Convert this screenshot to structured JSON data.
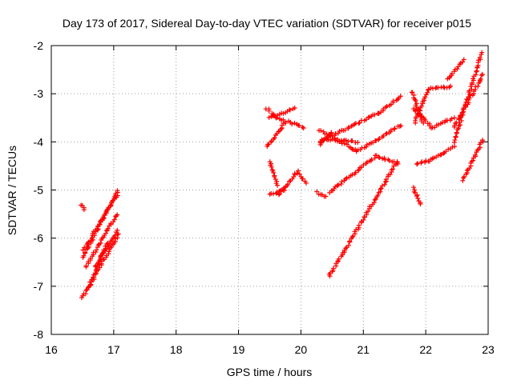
{
  "chart_data": {
    "type": "scatter",
    "title": "Day 173 of 2017, Sidereal Day-to-day VTEC variation (SDTVAR) for receiver p015",
    "xlabel": "GPS time / hours",
    "ylabel": "SDTVAR / TECUs",
    "xlim": [
      16,
      23
    ],
    "ylim": [
      -8,
      -2
    ],
    "xticks": [
      16,
      17,
      18,
      19,
      20,
      21,
      22,
      23
    ],
    "yticks": [
      -8,
      -7,
      -6,
      -5,
      -4,
      -3,
      -2
    ],
    "xtick_labels": [
      "16",
      "17",
      "18",
      "19",
      "20",
      "21",
      "22",
      "23"
    ],
    "ytick_labels": [
      "-8",
      "-7",
      "-6",
      "-5",
      "-4",
      "-3",
      "-2"
    ],
    "grid": true,
    "marker": "plus",
    "color": "#ff0000",
    "tracks": [
      {
        "x0": 16.49,
        "x1": 16.53,
        "y0": -5.3,
        "y1": -5.4
      },
      {
        "x0": 16.5,
        "x1": 17.07,
        "y0": -6.4,
        "y1": -5.0
      },
      {
        "x0": 16.52,
        "x1": 17.05,
        "y0": -6.25,
        "y1": -5.1
      },
      {
        "x0": 16.55,
        "x1": 17.05,
        "y0": -6.6,
        "y1": -5.5
      },
      {
        "x0": 16.5,
        "x1": 17.08,
        "y0": -7.25,
        "y1": -5.9
      },
      {
        "x0": 16.6,
        "x1": 16.9,
        "y0": -7.0,
        "y1": -6.1
      },
      {
        "x0": 16.7,
        "x1": 17.05,
        "y0": -6.6,
        "y1": -5.85
      },
      {
        "x0": 19.45,
        "x1": 19.6,
        "y0": -3.3,
        "y1": -3.5
      },
      {
        "x0": 19.5,
        "x1": 19.9,
        "y0": -3.5,
        "y1": -3.3
      },
      {
        "x0": 19.6,
        "x1": 20.05,
        "y0": -3.5,
        "y1": -3.7
      },
      {
        "x0": 19.45,
        "x1": 19.75,
        "y0": -4.1,
        "y1": -3.6
      },
      {
        "x0": 19.5,
        "x1": 19.62,
        "y0": -4.4,
        "y1": -4.9
      },
      {
        "x0": 19.5,
        "x1": 19.75,
        "y0": -5.1,
        "y1": -5.0
      },
      {
        "x0": 19.65,
        "x1": 19.95,
        "y0": -5.1,
        "y1": -4.6
      },
      {
        "x0": 19.95,
        "x1": 20.08,
        "y0": -4.65,
        "y1": -4.85
      },
      {
        "x0": 20.25,
        "x1": 20.4,
        "y0": -5.05,
        "y1": -5.15
      },
      {
        "x0": 20.45,
        "x1": 21.2,
        "y0": -5.05,
        "y1": -4.3
      },
      {
        "x0": 21.2,
        "x1": 21.55,
        "y0": -4.3,
        "y1": -4.45
      },
      {
        "x0": 20.3,
        "x1": 20.9,
        "y0": -3.75,
        "y1": -4.2
      },
      {
        "x0": 20.9,
        "x1": 21.6,
        "y0": -4.2,
        "y1": -3.65
      },
      {
        "x0": 20.3,
        "x1": 21.25,
        "y0": -4.0,
        "y1": -3.4
      },
      {
        "x0": 21.25,
        "x1": 21.6,
        "y0": -3.4,
        "y1": -3.05
      },
      {
        "x0": 20.35,
        "x1": 20.9,
        "y0": -3.95,
        "y1": -4.0
      },
      {
        "x0": 20.3,
        "x1": 20.5,
        "y0": -4.05,
        "y1": -3.8
      },
      {
        "x0": 20.45,
        "x1": 21.55,
        "y0": -6.8,
        "y1": -4.4
      },
      {
        "x0": 21.78,
        "x1": 21.95,
        "y0": -2.95,
        "y1": -3.6
      },
      {
        "x0": 21.8,
        "x1": 22.1,
        "y0": -3.3,
        "y1": -3.7
      },
      {
        "x0": 22.1,
        "x1": 22.45,
        "y0": -3.7,
        "y1": -3.5
      },
      {
        "x0": 21.82,
        "x1": 22.05,
        "y0": -3.6,
        "y1": -2.9
      },
      {
        "x0": 22.05,
        "x1": 22.4,
        "y0": -2.9,
        "y1": -2.85
      },
      {
        "x0": 22.35,
        "x1": 22.6,
        "y0": -2.7,
        "y1": -2.3
      },
      {
        "x0": 21.85,
        "x1": 22.05,
        "y0": -4.45,
        "y1": -4.4
      },
      {
        "x0": 22.05,
        "x1": 22.45,
        "y0": -4.4,
        "y1": -4.1
      },
      {
        "x0": 22.45,
        "x1": 22.9,
        "y0": -4.0,
        "y1": -2.15
      },
      {
        "x0": 22.45,
        "x1": 22.92,
        "y0": -3.7,
        "y1": -2.6
      },
      {
        "x0": 21.8,
        "x1": 21.92,
        "y0": -4.95,
        "y1": -5.3
      },
      {
        "x0": 22.6,
        "x1": 22.92,
        "y0": -4.8,
        "y1": -3.95
      }
    ]
  }
}
